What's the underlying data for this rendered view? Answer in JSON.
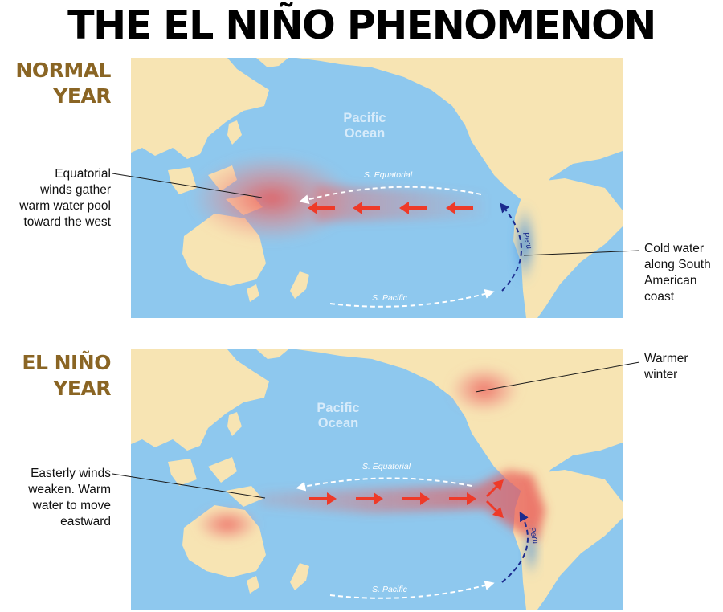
{
  "title": "THE EL NIÑO PHENOMENON",
  "colors": {
    "ocean": "#8ec8ee",
    "land": "#f7e4b3",
    "warm_water": "#e8585a",
    "cold_water": "#3b8fdd",
    "arrow_red": "#ee3a28",
    "current_dark": "#1c2b8e",
    "label_brown": "#8a6524"
  },
  "panels": {
    "normal": {
      "label_line1": "NORMAL",
      "label_line2": "YEAR",
      "ocean_label_line1": "Pacific",
      "ocean_label_line2": "Ocean",
      "current_equatorial": "S. Equatorial",
      "current_pacific": "S. Pacific",
      "current_peru": "Peru",
      "callout_left": {
        "line1": "Equatorial",
        "line2": "winds gather",
        "line3": "warm water pool",
        "line4": "toward the west"
      },
      "callout_right": {
        "line1": "Cold water",
        "line2": "along South",
        "line3": "American",
        "line4": "coast"
      },
      "wind_direction": "westward",
      "wind_arrow_icons": [
        "arrow-left-icon",
        "arrow-left-icon",
        "arrow-left-icon",
        "arrow-left-icon"
      ]
    },
    "elnino": {
      "label_line1": "EL NIÑO",
      "label_line2": "YEAR",
      "ocean_label_line1": "Pacific",
      "ocean_label_line2": "Ocean",
      "current_equatorial": "S. Equatorial",
      "current_pacific": "S. Pacific",
      "current_peru": "Peru",
      "callout_left": {
        "line1": "Easterly winds",
        "line2": "weaken. Warm",
        "line3": "water to move",
        "line4": "eastward"
      },
      "callout_right": {
        "line1": "Warmer",
        "line2": "winter"
      },
      "wind_direction": "eastward",
      "wind_arrow_icons": [
        "arrow-right-icon",
        "arrow-right-icon",
        "arrow-right-icon",
        "arrow-right-icon"
      ]
    }
  }
}
